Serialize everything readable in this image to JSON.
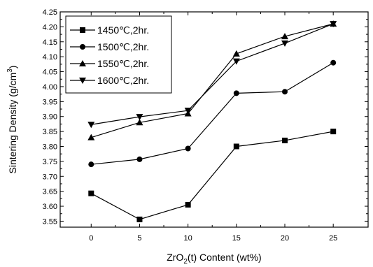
{
  "chart_data": {
    "type": "line",
    "xlabel": "ZrO2(t) Content (wt%)",
    "xlabel_main": "ZrO",
    "xlabel_sub": "2",
    "xlabel_rest": "(t) Content (wt%)",
    "ylabel": "Sintering Density (g/cm3)",
    "ylabel_main": "Sintering Density (g/cm",
    "ylabel_sup": "3",
    "ylabel_end": ")",
    "x": [
      0,
      5,
      10,
      15,
      20,
      25
    ],
    "x_tick_labels": [
      "0",
      "5",
      "10",
      "15",
      "20",
      "25"
    ],
    "xlim": [
      -3.2,
      28.6
    ],
    "ylim": [
      3.53,
      4.25
    ],
    "y_tick_labels": [
      "3.55",
      "3.60",
      "3.65",
      "3.70",
      "3.75",
      "3.80",
      "3.85",
      "3.90",
      "3.95",
      "4.00",
      "4.05",
      "4.10",
      "4.15",
      "4.20",
      "4.25"
    ],
    "y_ticks": [
      3.55,
      3.6,
      3.65,
      3.7,
      3.75,
      3.8,
      3.85,
      3.9,
      3.95,
      4.0,
      4.05,
      4.1,
      4.15,
      4.2,
      4.25
    ],
    "grid": false,
    "legend_position": "top-left",
    "series": [
      {
        "name": "1450℃,2hr.",
        "marker": "square",
        "values": [
          3.643,
          3.556,
          3.605,
          3.8,
          3.82,
          3.85
        ]
      },
      {
        "name": "1500℃,2hr.",
        "marker": "circle",
        "values": [
          3.74,
          3.757,
          3.793,
          3.978,
          3.983,
          4.08
        ]
      },
      {
        "name": "1550℃,2hr.",
        "marker": "triangle-up",
        "values": [
          3.83,
          3.88,
          3.91,
          4.11,
          4.168,
          4.21
        ]
      },
      {
        "name": "1600℃,2hr.",
        "marker": "triangle-down",
        "values": [
          3.873,
          3.899,
          3.92,
          4.085,
          4.145,
          4.21
        ]
      }
    ]
  }
}
